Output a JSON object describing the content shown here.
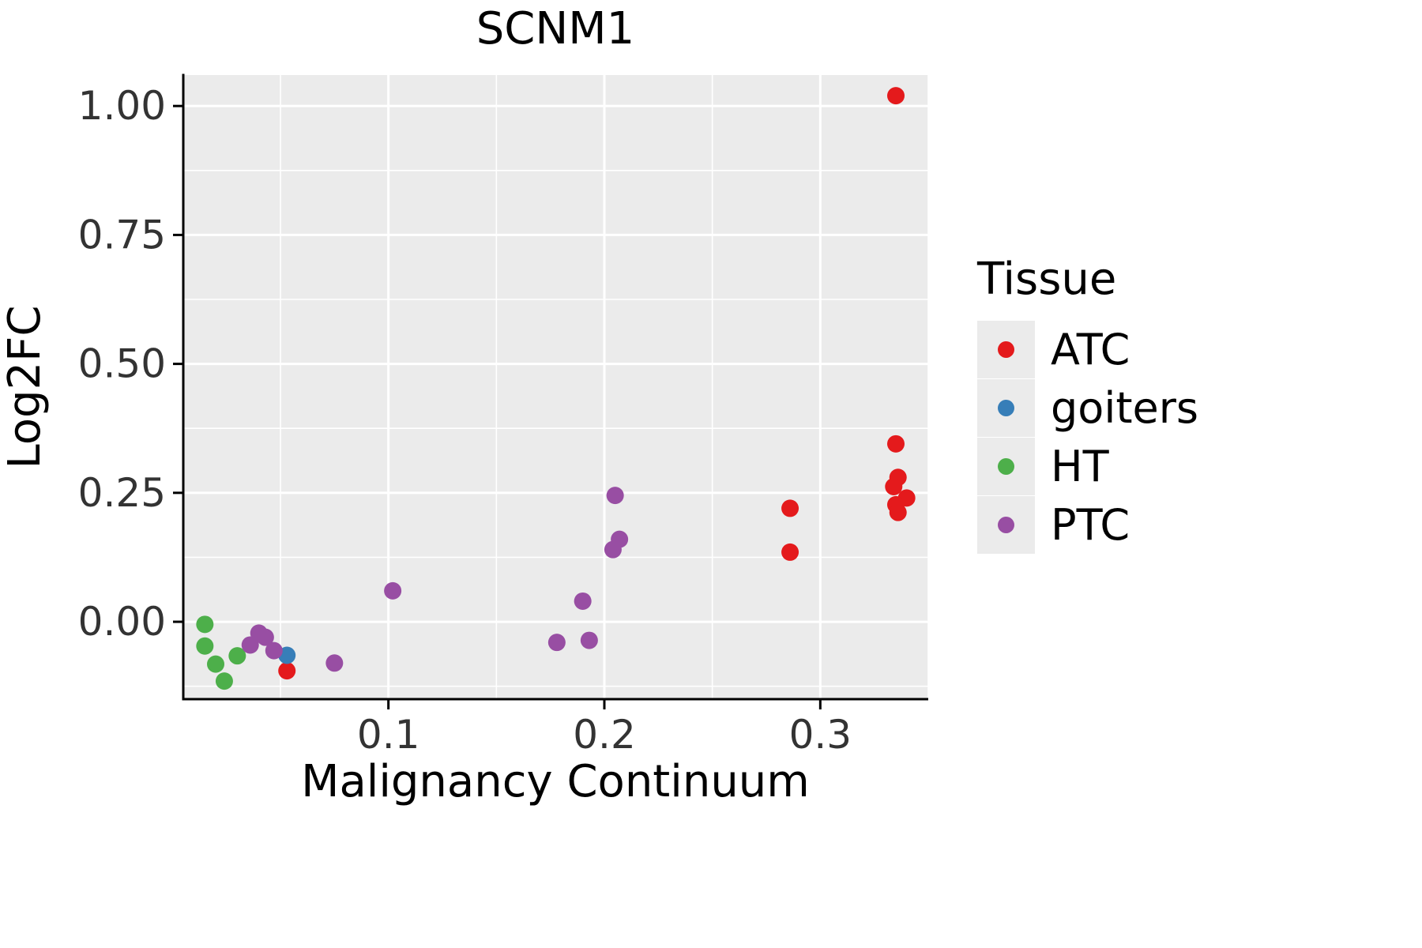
{
  "title": "SCNM1",
  "axes": {
    "xlabel": "Malignancy Continuum",
    "ylabel": "Log2FC",
    "x_ticks": {
      "values": [
        0.1,
        0.2,
        0.3
      ],
      "labels": [
        "0.1",
        "0.2",
        "0.3"
      ]
    },
    "y_ticks": {
      "values": [
        0.0,
        0.25,
        0.5,
        0.75,
        1.0
      ],
      "labels": [
        "0.00",
        "0.25",
        "0.50",
        "0.75",
        "1.00"
      ]
    }
  },
  "legend": {
    "title": "Tissue",
    "entries": [
      {
        "label": "ATC",
        "color": "#E41A1C"
      },
      {
        "label": "goiters",
        "color": "#377EB8"
      },
      {
        "label": "HT",
        "color": "#4DAF4A"
      },
      {
        "label": "PTC",
        "color": "#984EA3"
      }
    ]
  },
  "style": {
    "panel_bg": "#EBEBEB",
    "grid_color": "#FFFFFF",
    "axis_color": "#000000",
    "text_color": "#000000",
    "tick_text_color": "#333333"
  },
  "chart_data": {
    "type": "scatter",
    "title": "SCNM1",
    "xlabel": "Malignancy Continuum",
    "ylabel": "Log2FC",
    "xlim": [
      0.005,
      0.35
    ],
    "ylim": [
      -0.15,
      1.06
    ],
    "x_major": [
      0.1,
      0.2,
      0.3
    ],
    "x_minor": [
      0.05,
      0.15,
      0.25,
      0.35
    ],
    "y_major": [
      0.0,
      0.25,
      0.5,
      0.75,
      1.0
    ],
    "y_minor": [
      -0.125,
      0.125,
      0.375,
      0.625,
      0.875
    ],
    "grid": true,
    "legend_position": "right",
    "legend_title": "Tissue",
    "series": [
      {
        "name": "ATC",
        "color": "#E41A1C",
        "points": [
          [
            0.335,
            1.02
          ],
          [
            0.335,
            0.345
          ],
          [
            0.336,
            0.28
          ],
          [
            0.334,
            0.262
          ],
          [
            0.34,
            0.24
          ],
          [
            0.335,
            0.227
          ],
          [
            0.336,
            0.212
          ],
          [
            0.286,
            0.22
          ],
          [
            0.286,
            0.135
          ],
          [
            0.053,
            -0.095
          ]
        ]
      },
      {
        "name": "goiters",
        "color": "#377EB8",
        "points": [
          [
            0.053,
            -0.065
          ]
        ]
      },
      {
        "name": "HT",
        "color": "#4DAF4A",
        "points": [
          [
            0.015,
            -0.005
          ],
          [
            0.015,
            -0.047
          ],
          [
            0.02,
            -0.082
          ],
          [
            0.024,
            -0.115
          ],
          [
            0.03,
            -0.066
          ]
        ]
      },
      {
        "name": "PTC",
        "color": "#984EA3",
        "points": [
          [
            0.036,
            -0.045
          ],
          [
            0.04,
            -0.022
          ],
          [
            0.043,
            -0.03
          ],
          [
            0.047,
            -0.056
          ],
          [
            0.075,
            -0.08
          ],
          [
            0.102,
            0.06
          ],
          [
            0.178,
            -0.04
          ],
          [
            0.19,
            0.04
          ],
          [
            0.193,
            -0.036
          ],
          [
            0.205,
            0.245
          ],
          [
            0.207,
            0.16
          ],
          [
            0.204,
            0.14
          ]
        ]
      }
    ]
  }
}
